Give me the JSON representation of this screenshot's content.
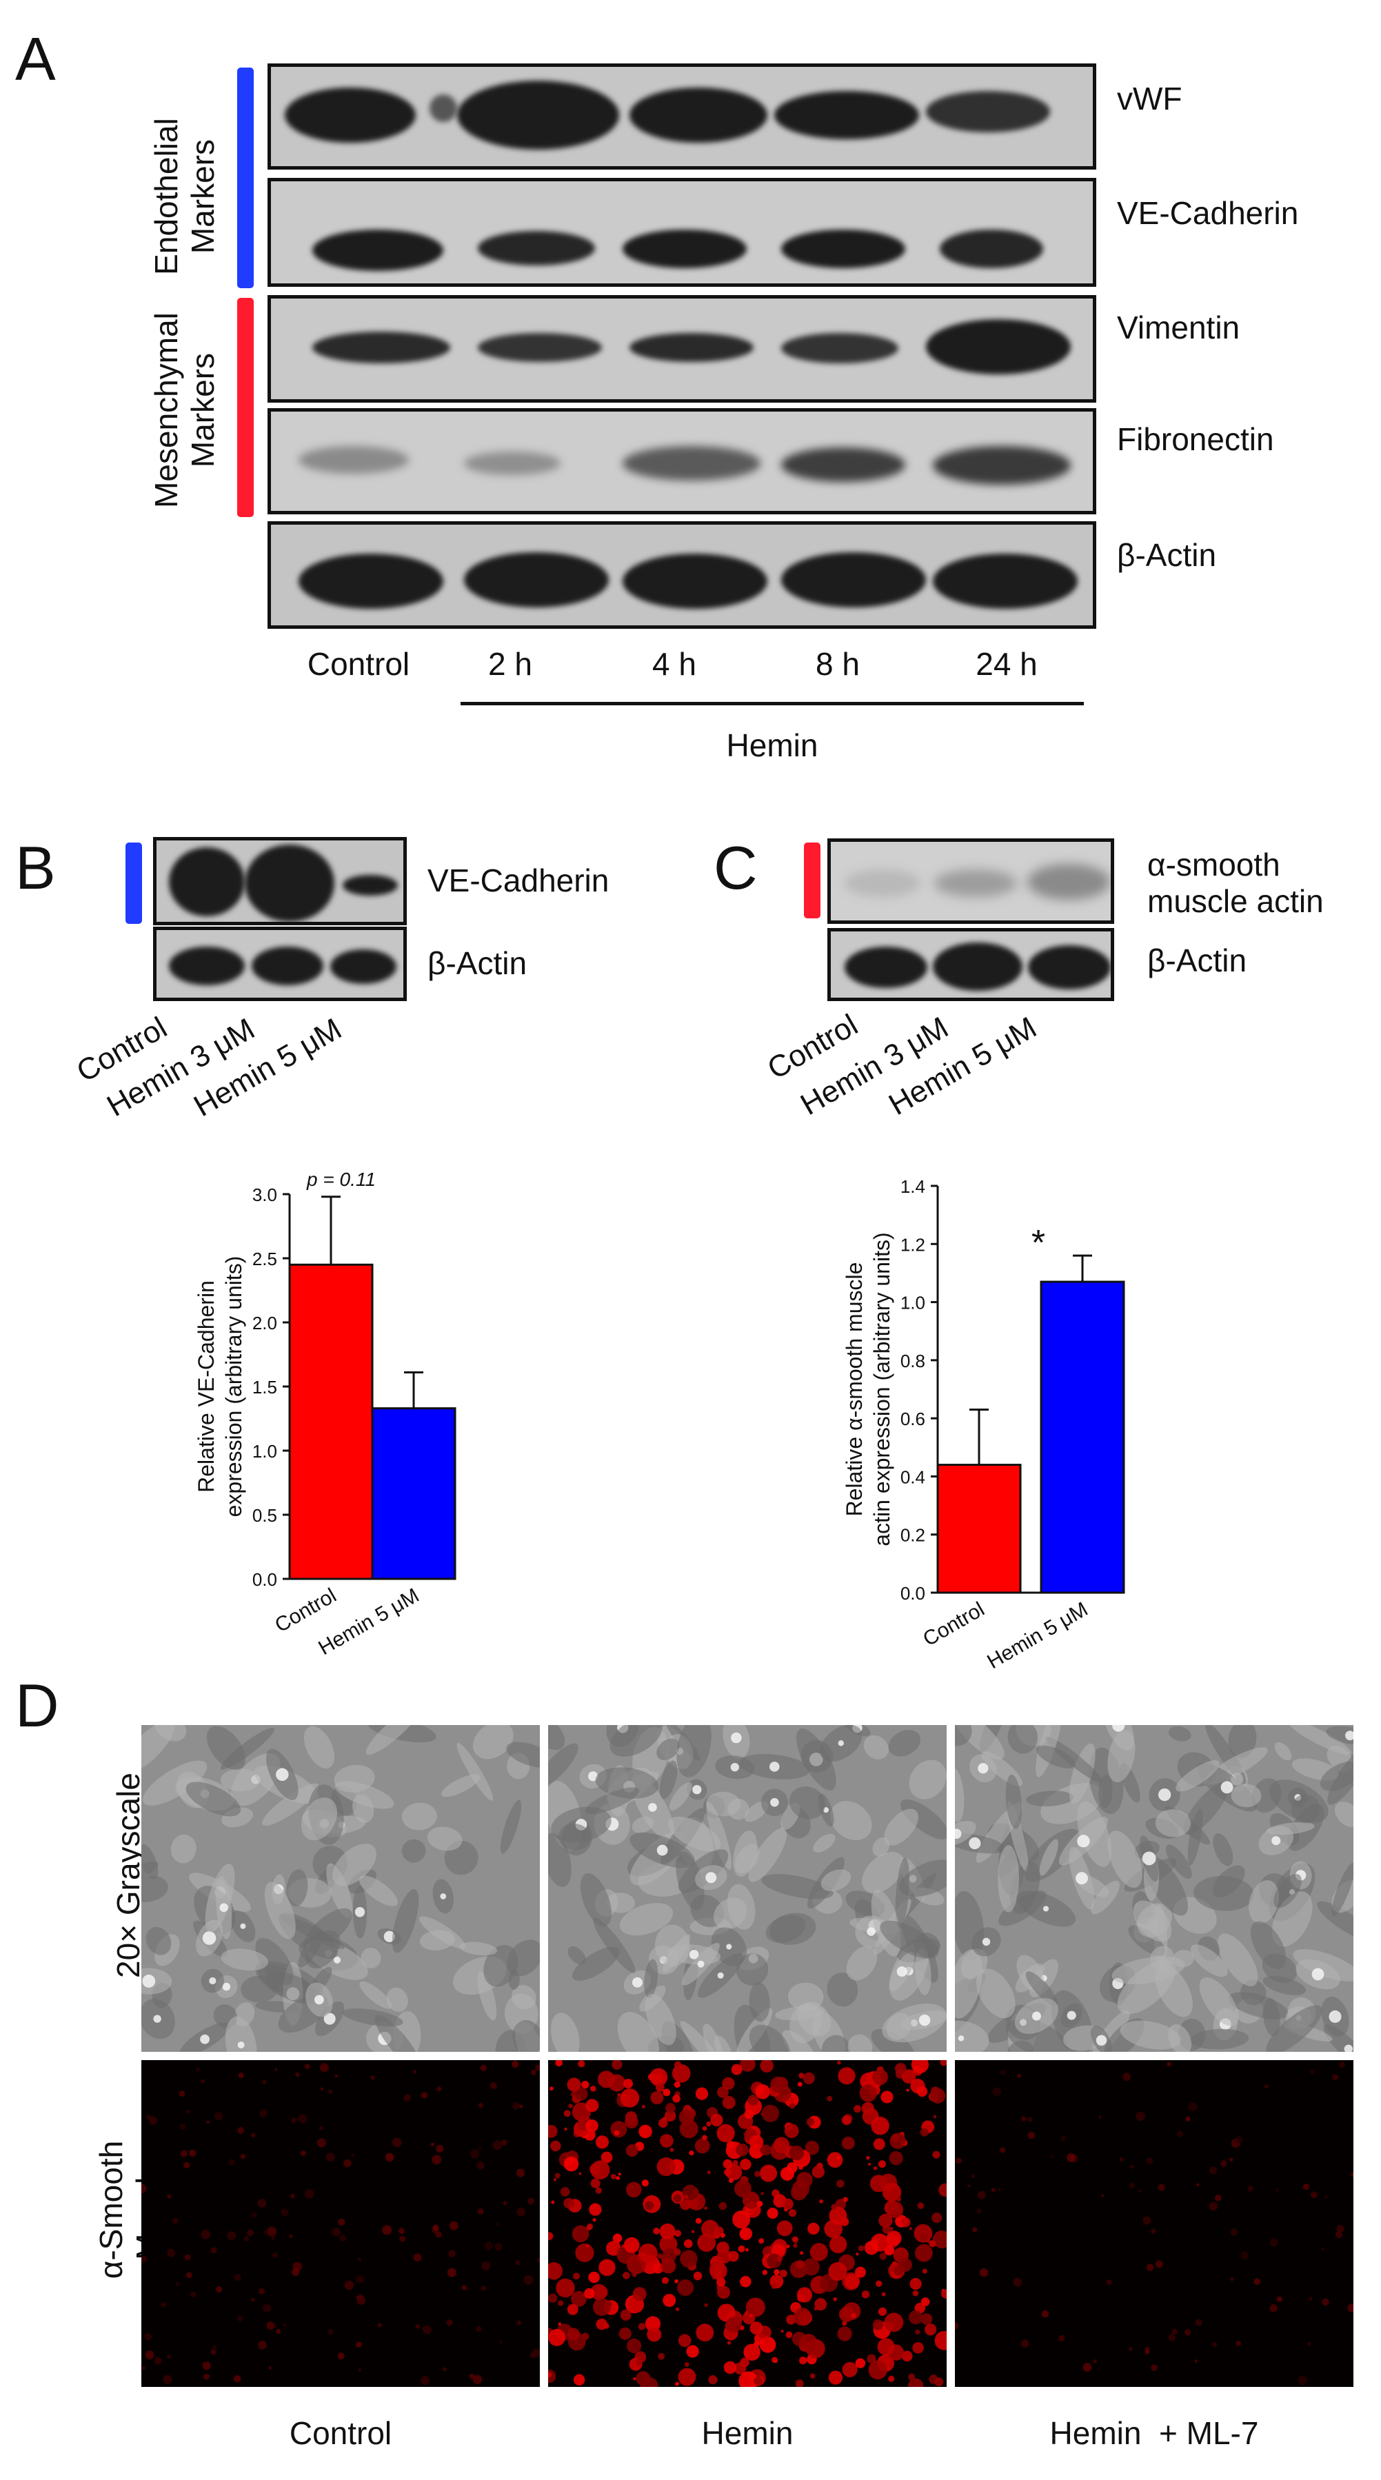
{
  "panelA": {
    "label": "A",
    "groups": [
      "Endothelial\nMarkers",
      "Mesenchymal\nMarkers"
    ],
    "markers": [
      "vWF",
      "VE-Cadherin",
      "Vimentin",
      "Fibronectin",
      "β-Actin"
    ],
    "lanes": [
      "Control",
      "2 h",
      "4 h",
      "8 h",
      "24 h"
    ],
    "treatment": "Hemin"
  },
  "panelB": {
    "label": "B",
    "markers": [
      "VE-Cadherin",
      "β-Actin"
    ],
    "lanes": [
      "Control",
      "Hemin 3 μM",
      "Hemin 5 μM"
    ]
  },
  "panelC": {
    "label": "C",
    "markers": [
      "α-smooth\nmuscle actin",
      "β-Actin"
    ],
    "lanes": [
      "Control",
      "Hemin 3 μM",
      "Hemin 5 μM"
    ]
  },
  "panelD": {
    "label": "D",
    "rows": [
      "20× Grayscale",
      "α-Smooth Muscle\nActin"
    ],
    "columns": [
      "Control",
      "Hemin",
      "Hemin  + ML-7"
    ]
  },
  "chart_data": [
    {
      "type": "bar",
      "panel": "B",
      "categories": [
        "Control",
        "Hemin 5 μM"
      ],
      "values": [
        2.45,
        1.33
      ],
      "errors": [
        0.53,
        0.28
      ],
      "colors": [
        "#ff0000",
        "#0000ff"
      ],
      "ylabel": "Relative VE-Cadherin\nexpression (arbitrary units)",
      "ylim": [
        0,
        3.0
      ],
      "yticks": [
        "0.0",
        "0.5",
        "1.0",
        "1.5",
        "2.0",
        "2.5",
        "3.0"
      ],
      "annotation": "p = 0.11"
    },
    {
      "type": "bar",
      "panel": "C",
      "categories": [
        "Control",
        "Hemin 5 μM"
      ],
      "values": [
        0.44,
        1.07
      ],
      "errors": [
        0.19,
        0.09
      ],
      "colors": [
        "#ff0000",
        "#0000ff"
      ],
      "ylabel": "Relative α-smooth muscle\nactin expression (arbitrary units)",
      "ylim": [
        0,
        1.4
      ],
      "yticks": [
        "0.0",
        "0.2",
        "0.4",
        "0.6",
        "0.8",
        "1.0",
        "1.2",
        "1.4"
      ],
      "annotation": "*"
    }
  ],
  "colors": {
    "endothelial": "#1f3cff",
    "mesenchymal": "#ff1a2e",
    "blot_bg": "#c8c8c8",
    "band": "#1e1e1e"
  }
}
